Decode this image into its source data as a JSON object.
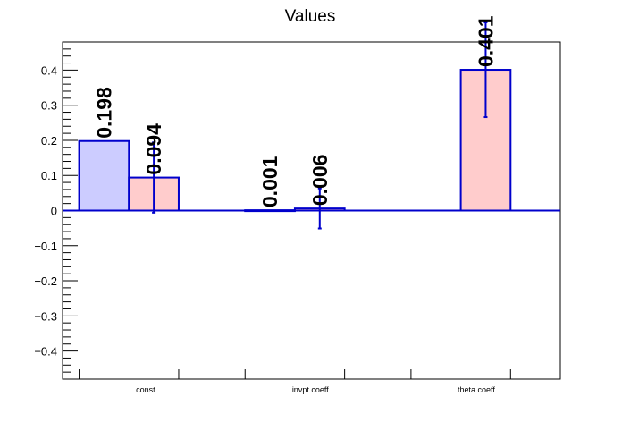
{
  "chart_data": {
    "type": "bar",
    "title": "Values",
    "categories": [
      "const",
      "invpt coeff.",
      "theta coeff."
    ],
    "ylim": [
      -0.48,
      0.48
    ],
    "yticks": [
      -0.4,
      -0.3,
      -0.2,
      -0.1,
      0,
      0.1,
      0.2,
      0.3,
      0.4
    ],
    "ytick_labels": [
      "−0.4",
      "−0.3",
      "−0.2",
      "−0.1",
      "0",
      "0.1",
      "0.2",
      "0.3",
      "0.4"
    ],
    "grid": false,
    "series": [
      {
        "color_fill": "#ccccff",
        "color_edge": "#0000cc",
        "values": [
          0.198,
          0.001,
          null
        ],
        "labels": [
          "0.198",
          "0.001",
          null
        ],
        "errors": [
          null,
          null,
          null
        ]
      },
      {
        "color_fill": "#ffcccc",
        "color_edge": "#0000cc",
        "values": [
          0.094,
          0.006,
          0.401
        ],
        "labels": [
          "0.094",
          "0.006",
          "0.401"
        ],
        "errors": [
          0.1,
          0.057,
          0.135
        ]
      }
    ]
  }
}
